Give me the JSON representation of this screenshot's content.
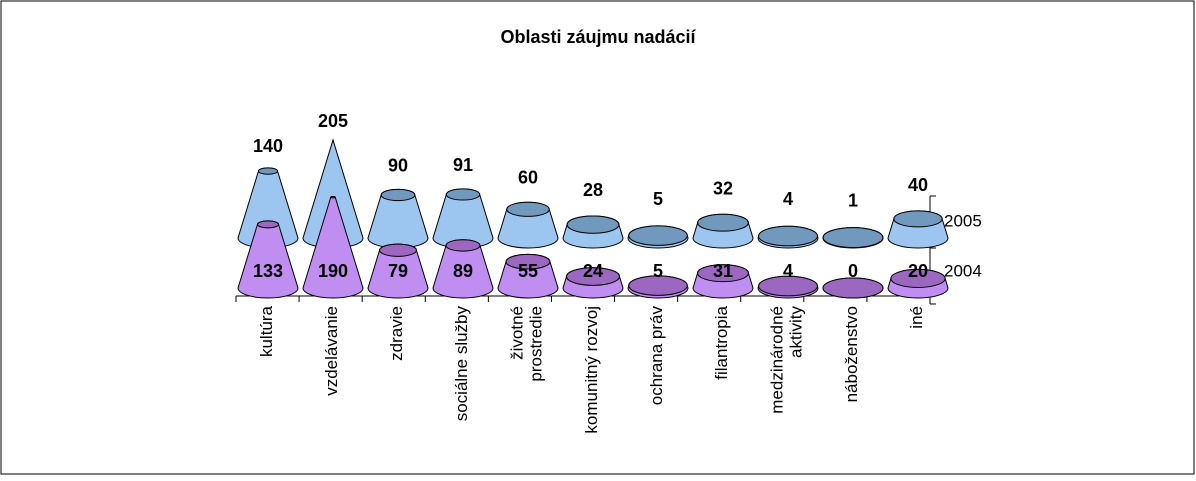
{
  "chart_data": {
    "type": "cone3d",
    "title": "Oblasti záujmu nadácií",
    "categories": [
      "kultúra",
      "vzdelávanie",
      "zdravie",
      "sociálne služby",
      "životné\nprostredie",
      "komunitný rozvoj",
      "ochrana práv",
      "filantropia",
      "medzinárodné\naktivity",
      "náboženstvo",
      "iné"
    ],
    "series": [
      {
        "name": "2005",
        "color": "#9cc6f0",
        "top_color": "#7099bd",
        "values": [
          140,
          205,
          90,
          91,
          60,
          28,
          5,
          32,
          4,
          1,
          40
        ]
      },
      {
        "name": "2004",
        "color": "#c08ef0",
        "top_color": "#9b67c0",
        "values": [
          133,
          190,
          79,
          89,
          55,
          24,
          5,
          31,
          4,
          0,
          20
        ]
      }
    ]
  }
}
